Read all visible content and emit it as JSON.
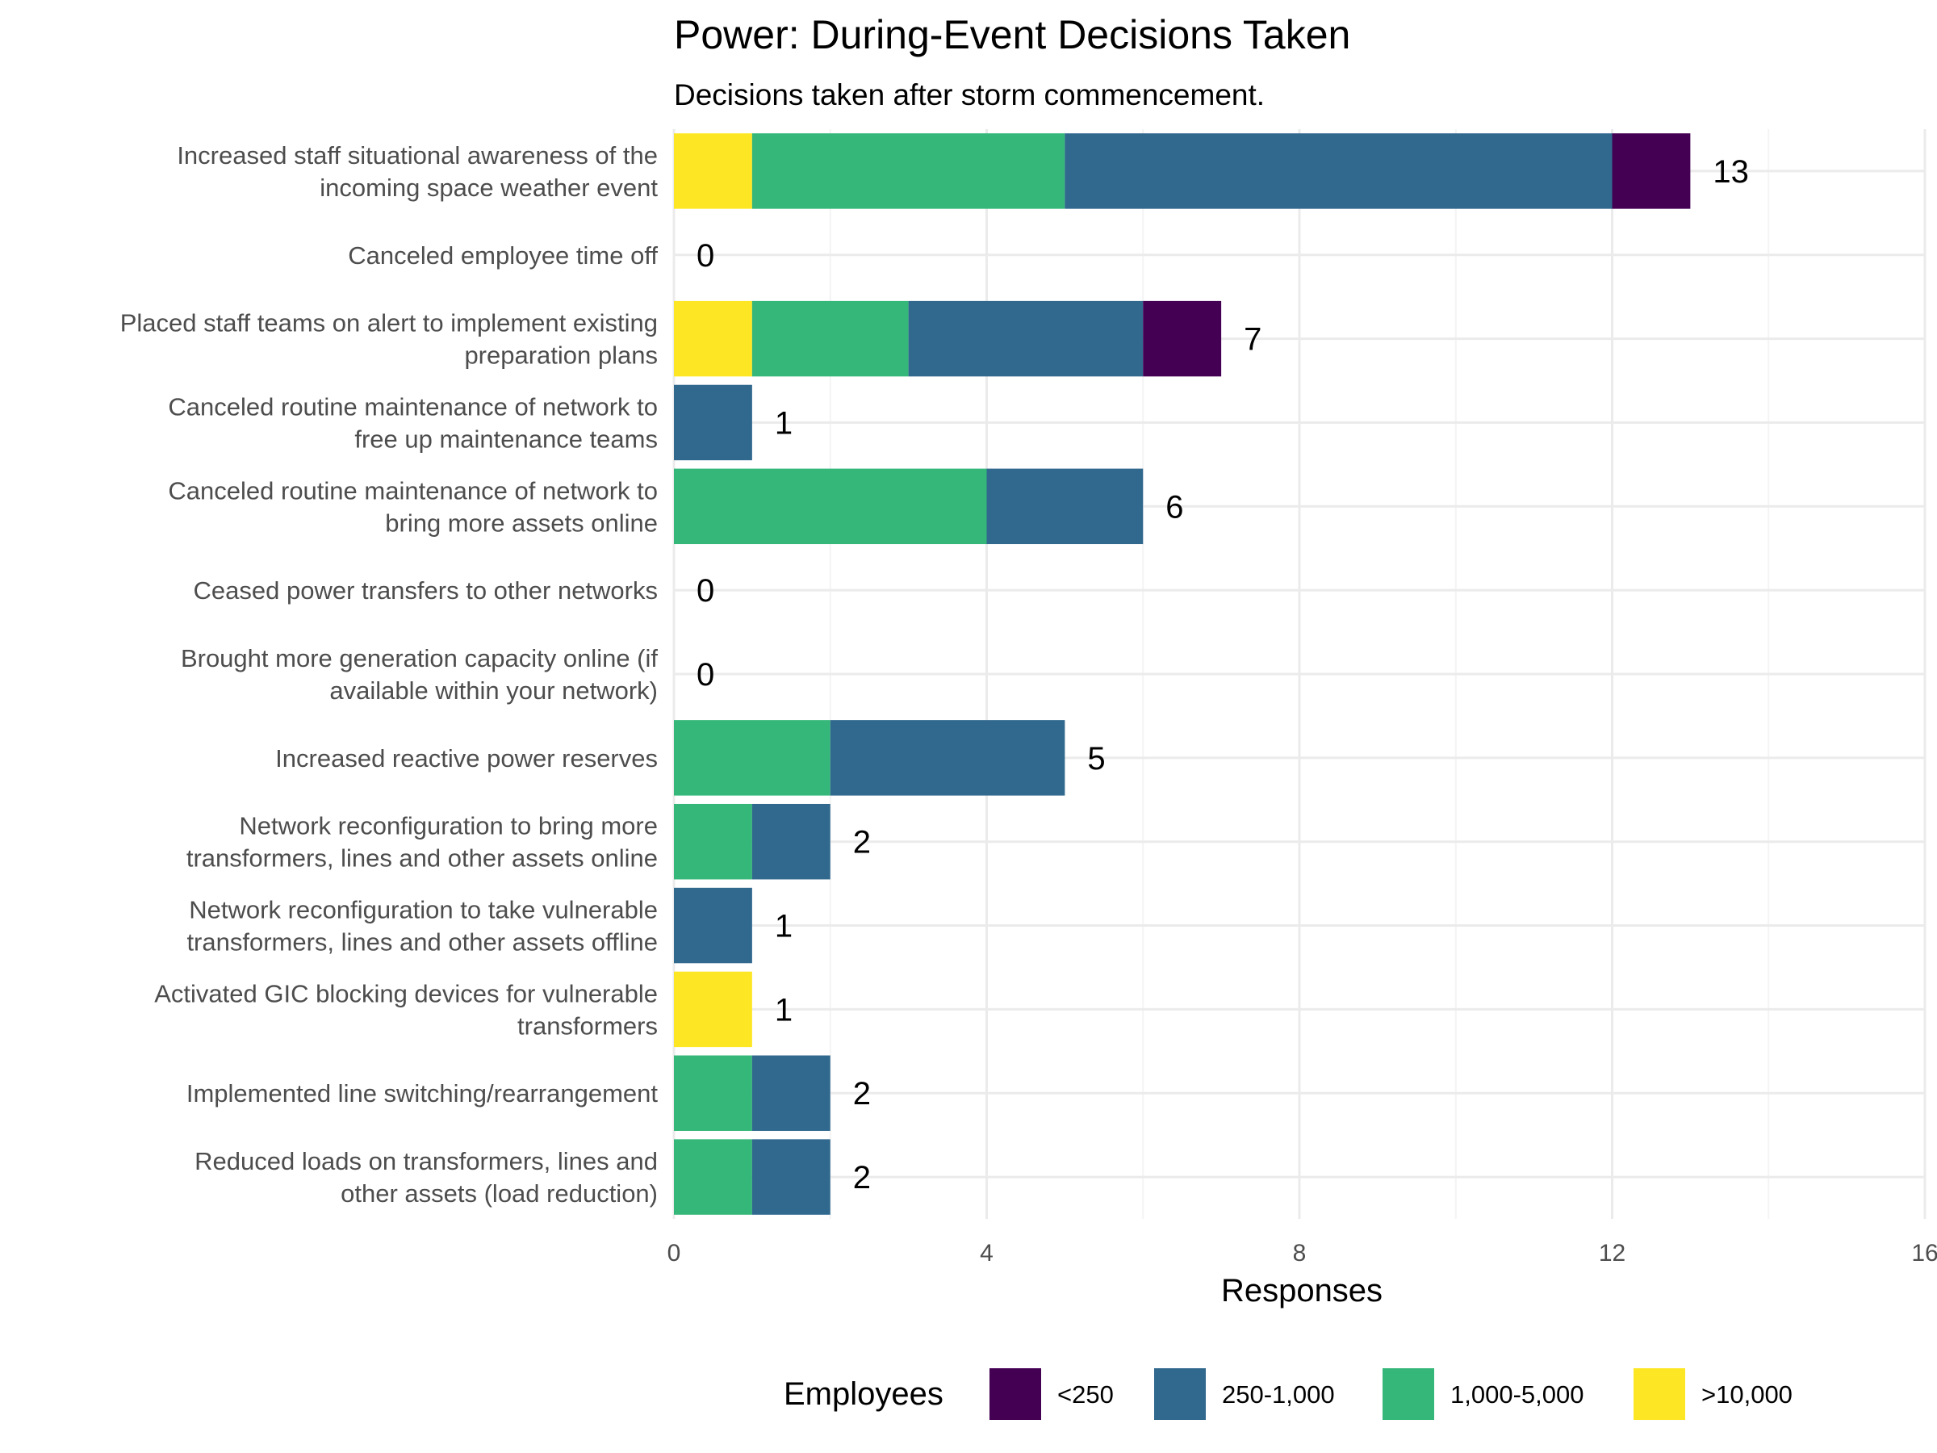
{
  "chart_data": {
    "type": "bar",
    "orientation": "horizontal",
    "stacked": true,
    "title": "Power: During-Event Decisions Taken",
    "subtitle": "Decisions taken after storm commencement.",
    "xlabel": "Responses",
    "ylabel": "",
    "xlim": [
      0,
      16
    ],
    "xticks": [
      0,
      4,
      8,
      12,
      16
    ],
    "grid": true,
    "legend": {
      "title": "Employees",
      "position": "bottom"
    },
    "categories": [
      [
        "Increased staff situational awareness of the",
        "incoming space weather event"
      ],
      [
        "Canceled employee time off"
      ],
      [
        "Placed staff teams on alert to implement existing",
        "preparation plans"
      ],
      [
        "Canceled routine maintenance of network to",
        "free up maintenance teams"
      ],
      [
        "Canceled routine maintenance of network to",
        "bring more assets online"
      ],
      [
        "Ceased power transfers to other networks"
      ],
      [
        "Brought more generation capacity online (if",
        "available within your network)"
      ],
      [
        "Increased reactive power reserves"
      ],
      [
        "Network reconfiguration to bring more",
        "transformers, lines and other assets online"
      ],
      [
        "Network reconfiguration to take vulnerable",
        "transformers, lines and other assets offline"
      ],
      [
        "Activated GIC blocking devices for vulnerable",
        "transformers"
      ],
      [
        "Implemented line switching/rearrangement"
      ],
      [
        "Reduced loads on transformers, lines and",
        "other assets (load reduction)"
      ]
    ],
    "stack_order": [
      ">10,000",
      "1,000-5,000",
      "250-1,000",
      "<250"
    ],
    "series": [
      {
        "name": "<250",
        "color": "#440154",
        "values": [
          1,
          0,
          1,
          0,
          0,
          0,
          0,
          0,
          0,
          0,
          0,
          0,
          0
        ]
      },
      {
        "name": "250-1,000",
        "color": "#31688e",
        "values": [
          7,
          0,
          3,
          1,
          2,
          0,
          0,
          3,
          1,
          1,
          0,
          1,
          1
        ]
      },
      {
        "name": "1,000-5,000",
        "color": "#35b779",
        "values": [
          4,
          0,
          2,
          0,
          4,
          0,
          0,
          2,
          1,
          0,
          0,
          1,
          1
        ]
      },
      {
        "name": ">10,000",
        "color": "#fde725",
        "values": [
          1,
          0,
          1,
          0,
          0,
          0,
          0,
          0,
          0,
          0,
          1,
          0,
          0
        ]
      }
    ],
    "totals": [
      13,
      0,
      7,
      1,
      6,
      0,
      0,
      5,
      2,
      1,
      1,
      2,
      2
    ]
  }
}
